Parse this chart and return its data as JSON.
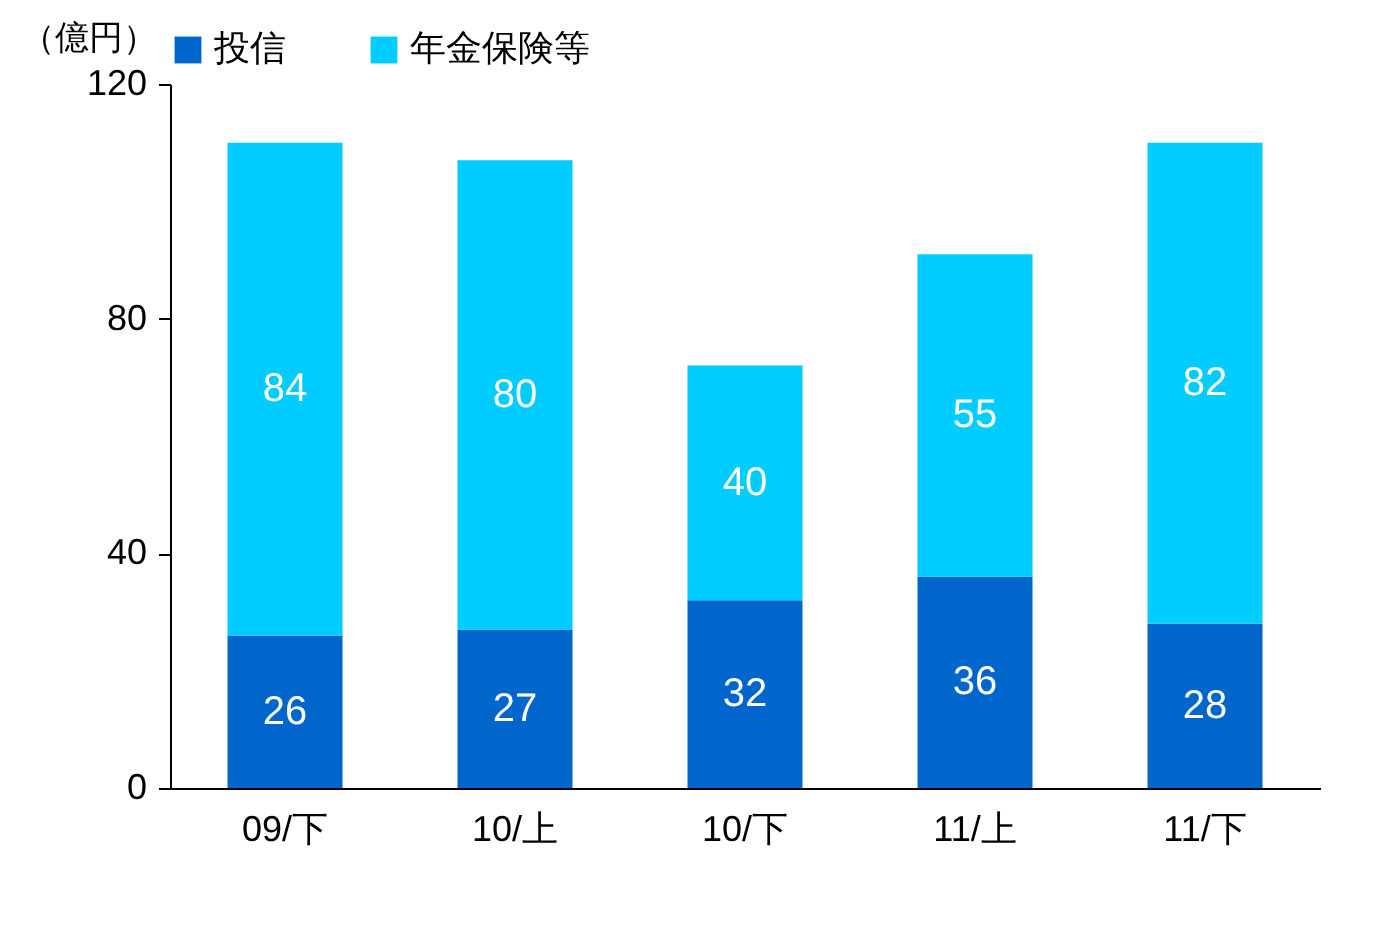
{
  "chart_data": {
    "type": "bar",
    "stacked": true,
    "ylabel": "（億円）",
    "categories": [
      "09/下",
      "10/上",
      "10/下",
      "11/上",
      "11/下"
    ],
    "series": [
      {
        "name": "投信",
        "color": "#0066cc",
        "values": [
          26,
          27,
          32,
          36,
          28
        ]
      },
      {
        "name": "年金保険等",
        "color": "#00ccff",
        "values": [
          84,
          80,
          40,
          55,
          82
        ]
      }
    ],
    "ylim": [
      0,
      120
    ],
    "yticks": [
      0,
      40,
      80,
      120
    ],
    "data_labels": true,
    "legend": "top",
    "grid": false
  }
}
